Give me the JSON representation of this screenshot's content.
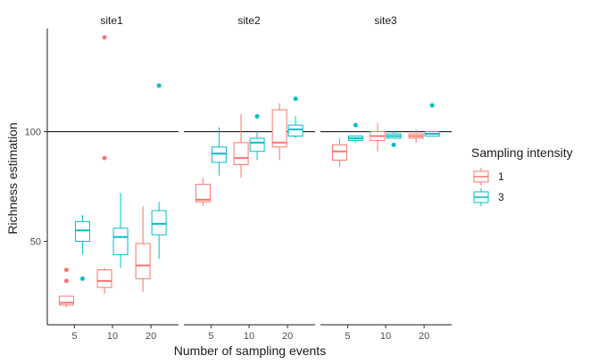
{
  "chart_data": {
    "type": "boxplot",
    "facets": [
      "site1",
      "site2",
      "site3"
    ],
    "categories": [
      "5",
      "10",
      "20"
    ],
    "xlabel": "Number of sampling events",
    "ylabel": "Richness estimation",
    "y_ticks": [
      50,
      100
    ],
    "ylim": [
      12,
      147
    ],
    "reference_line": 100,
    "legend": {
      "title": "Sampling intensity",
      "placement": "right",
      "entries": [
        "1",
        "3"
      ]
    },
    "series": [
      {
        "name": "1",
        "color": "#F8766D",
        "boxes": {
          "site1": [
            {
              "category": "5",
              "whisker_low": 20,
              "q1": 21,
              "median": 22,
              "q3": 25,
              "whisker_high": 25,
              "outliers": [
                37,
                32
              ]
            },
            {
              "category": "10",
              "whisker_low": 26,
              "q1": 29,
              "median": 32,
              "q3": 37,
              "whisker_high": 38,
              "outliers": [
                143,
                88
              ]
            },
            {
              "category": "20",
              "whisker_low": 27,
              "q1": 33,
              "median": 39,
              "q3": 49,
              "whisker_high": 66,
              "outliers": []
            }
          ],
          "site2": [
            {
              "category": "5",
              "whisker_low": 66,
              "q1": 68,
              "median": 69,
              "q3": 76,
              "whisker_high": 79,
              "outliers": []
            },
            {
              "category": "10",
              "whisker_low": 79,
              "q1": 85,
              "median": 88,
              "q3": 95,
              "whisker_high": 108,
              "outliers": []
            },
            {
              "category": "20",
              "whisker_low": 87,
              "q1": 93,
              "median": 95,
              "q3": 110,
              "whisker_high": 113,
              "outliers": []
            }
          ],
          "site3": [
            {
              "category": "5",
              "whisker_low": 84,
              "q1": 87,
              "median": 91,
              "q3": 94,
              "whisker_high": 97,
              "outliers": []
            },
            {
              "category": "10",
              "whisker_low": 91,
              "q1": 96,
              "median": 98,
              "q3": 100,
              "whisker_high": 104,
              "outliers": []
            },
            {
              "category": "20",
              "whisker_low": 95,
              "q1": 97,
              "median": 98,
              "q3": 99,
              "whisker_high": 101,
              "outliers": []
            }
          ]
        }
      },
      {
        "name": "3",
        "color": "#00BFC4",
        "boxes": {
          "site1": [
            {
              "category": "5",
              "whisker_low": 44,
              "q1": 50,
              "median": 55,
              "q3": 59,
              "whisker_high": 62,
              "outliers": [
                33
              ]
            },
            {
              "category": "10",
              "whisker_low": 38,
              "q1": 44,
              "median": 52,
              "q3": 56,
              "whisker_high": 72,
              "outliers": []
            },
            {
              "category": "20",
              "whisker_low": 42,
              "q1": 53,
              "median": 58,
              "q3": 64,
              "whisker_high": 68,
              "outliers": [
                121
              ]
            }
          ],
          "site2": [
            {
              "category": "5",
              "whisker_low": 80,
              "q1": 86,
              "median": 90,
              "q3": 93,
              "whisker_high": 102,
              "outliers": []
            },
            {
              "category": "10",
              "whisker_low": 87,
              "q1": 91,
              "median": 95,
              "q3": 97,
              "whisker_high": 100,
              "outliers": [
                107
              ]
            },
            {
              "category": "20",
              "whisker_low": 97,
              "q1": 98,
              "median": 101,
              "q3": 103,
              "whisker_high": 107,
              "outliers": [
                115
              ]
            }
          ],
          "site3": [
            {
              "category": "5",
              "whisker_low": 95,
              "q1": 96,
              "median": 97,
              "q3": 98,
              "whisker_high": 98,
              "outliers": [
                103
              ]
            },
            {
              "category": "10",
              "whisker_low": 97,
              "q1": 97,
              "median": 98,
              "q3": 99,
              "whisker_high": 100,
              "outliers": [
                94
              ]
            },
            {
              "category": "20",
              "whisker_low": 98,
              "q1": 98,
              "median": 99,
              "q3": 100,
              "whisker_high": 100,
              "outliers": [
                112
              ]
            }
          ]
        }
      }
    ]
  }
}
